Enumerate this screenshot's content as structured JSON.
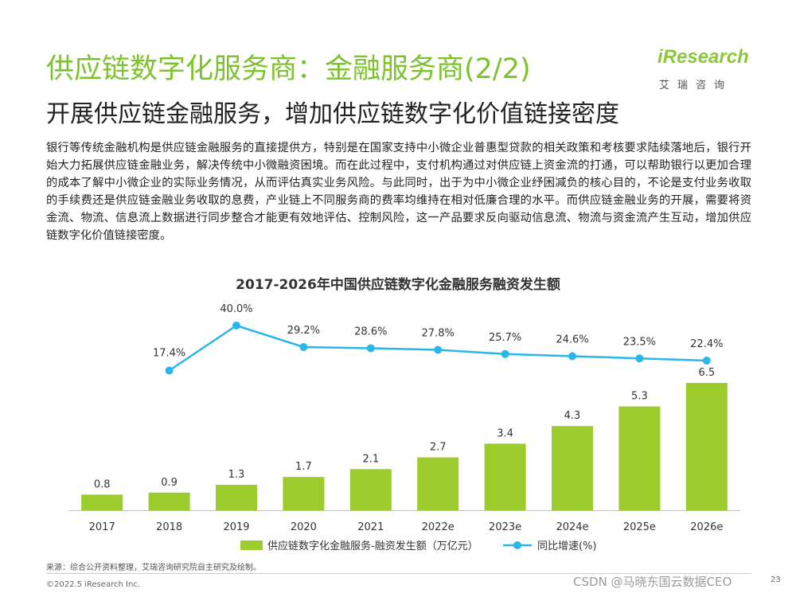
{
  "header": {
    "title": "供应链数字化服务商：金融服务商(2/2)",
    "subtitle": "开展供应链金融服务，增加供应链数字化价值链接密度"
  },
  "logo": {
    "word": "iResearch",
    "cn": "艾瑞咨询"
  },
  "body": {
    "paragraph": "银行等传统金融机构是供应链金融服务的直接提供方，特别是在国家支持中小微企业普惠型贷款的相关政策和考核要求陆续落地后，银行开始大力拓展供应链金融业务，解决传统中小微融资困境。而在此过程中，支付机构通过对供应链上资金流的打通，可以帮助银行以更加合理的成本了解中小微企业的实际业务情况，从而评估真实业务风险。与此同时，出于为中小微企业纾困减负的核心目的，不论是支付业务收取的手续费还是供应链金融业务收取的息费，产业链上不同服务商的费率均维持在相对低廉合理的水平。而供应链金融业务的开展，需要将资金流、物流、信息流上数据进行同步整合才能更有效地评估、控制风险，这一产品要求反向驱动信息流、物流与资金流产生互动，增加供应链数字化价值链接密度。"
  },
  "chart_data": {
    "type": "bar+line",
    "title": "2017-2026年中国供应链数字化金融服务融资发生额",
    "categories": [
      "2017",
      "2018",
      "2019",
      "2020",
      "2021",
      "2022e",
      "2023e",
      "2024e",
      "2025e",
      "2026e"
    ],
    "series": [
      {
        "name": "供应链数字化金融服务-融资发生额（万亿元）",
        "type": "bar",
        "values": [
          0.8,
          0.9,
          1.3,
          1.7,
          2.1,
          2.7,
          3.4,
          4.3,
          5.3,
          6.5
        ],
        "labels": [
          "0.8",
          "0.9",
          "1.3",
          "1.7",
          "2.1",
          "2.7",
          "3.4",
          "4.3",
          "5.3",
          "6.5"
        ],
        "color": "#9ccc2c"
      },
      {
        "name": "同比增速(%)",
        "type": "line",
        "values": [
          null,
          17.4,
          40.0,
          29.2,
          28.6,
          27.8,
          25.7,
          24.6,
          23.5,
          22.4
        ],
        "labels": [
          "",
          "17.4%",
          "40.0%",
          "29.2%",
          "28.6%",
          "27.8%",
          "25.7%",
          "24.6%",
          "23.5%",
          "22.4%"
        ],
        "color": "#29b6e8"
      }
    ],
    "legend_position": "bottom"
  },
  "footer": {
    "source": "来源：综合公开资料整理，艾瑞咨询研究院自主研究及绘制。",
    "copyright": "©2022.5 iResearch Inc.",
    "watermark": "CSDN @马晓东国云数据CEO",
    "page": "23"
  }
}
